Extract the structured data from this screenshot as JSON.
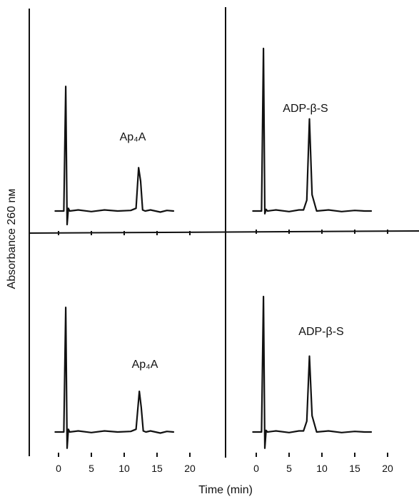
{
  "figure": {
    "ylabel": "Absorbance 260 nм",
    "xlabel": "Time (min)"
  },
  "chart_data": [
    {
      "type": "line",
      "panel": "top-left",
      "annotation": "Ap₄A",
      "xticks": [
        0,
        5,
        10,
        15,
        20
      ],
      "xlim": [
        -3,
        23
      ],
      "series": [
        {
          "x": [
            -0.5,
            0.8,
            1.1,
            1.3,
            1.5,
            1.7,
            3,
            5,
            7,
            9,
            11,
            11.8,
            12.2,
            12.5,
            12.8,
            13.2,
            14,
            15.5,
            16.5,
            17.5
          ],
          "values": [
            0,
            0,
            2.3,
            -0.25,
            0.05,
            0,
            0.02,
            -0.01,
            0.02,
            0,
            0.01,
            0.05,
            0.8,
            0.55,
            0.02,
            0,
            0.02,
            -0.02,
            0.01,
            0
          ]
        }
      ]
    },
    {
      "type": "line",
      "panel": "top-right",
      "annotation": "ADP-β-S",
      "xticks": [
        0,
        5,
        10,
        15,
        20
      ],
      "xlim": [
        -3,
        23
      ],
      "series": [
        {
          "x": [
            -0.5,
            0.8,
            1.1,
            1.3,
            1.5,
            1.7,
            3,
            5,
            6.5,
            7.2,
            7.7,
            8.1,
            8.5,
            9.2,
            11,
            13,
            15,
            16.5,
            17.5
          ],
          "values": [
            0,
            0,
            3.0,
            -0.05,
            0.03,
            0,
            0.02,
            -0.01,
            0.02,
            0.02,
            0.2,
            1.7,
            0.3,
            0,
            0.02,
            -0.01,
            0.01,
            0,
            0
          ]
        }
      ]
    },
    {
      "type": "line",
      "panel": "bottom-left",
      "annotation": "Ap₄A",
      "xticks": [
        0,
        5,
        10,
        15,
        20
      ],
      "xlim": [
        -3,
        23
      ],
      "series": [
        {
          "x": [
            -0.5,
            0.8,
            1.1,
            1.3,
            1.5,
            1.7,
            3,
            5,
            7,
            9,
            11,
            11.8,
            12.3,
            12.6,
            12.9,
            13.3,
            14,
            15.5,
            16.5,
            17.5
          ],
          "values": [
            0,
            0,
            2.3,
            -0.3,
            0.05,
            0,
            0.02,
            -0.01,
            0.02,
            0,
            0.01,
            0.05,
            0.75,
            0.45,
            0.02,
            0,
            0.02,
            -0.02,
            0.01,
            0
          ]
        }
      ]
    },
    {
      "type": "line",
      "panel": "bottom-right",
      "annotation": "ADP-β-S",
      "xticks": [
        0,
        5,
        10,
        15,
        20
      ],
      "xlim": [
        -3,
        23
      ],
      "series": [
        {
          "x": [
            -0.5,
            0.8,
            1.1,
            1.3,
            1.5,
            1.7,
            3,
            5,
            6.5,
            7.2,
            7.7,
            8.1,
            8.5,
            9.2,
            11,
            13,
            15,
            16.5,
            17.5
          ],
          "values": [
            0,
            0,
            2.5,
            -0.3,
            0.03,
            0,
            0.02,
            -0.01,
            0.02,
            0.02,
            0.2,
            1.4,
            0.3,
            0,
            0.02,
            -0.01,
            0.01,
            0,
            0
          ]
        }
      ]
    }
  ]
}
